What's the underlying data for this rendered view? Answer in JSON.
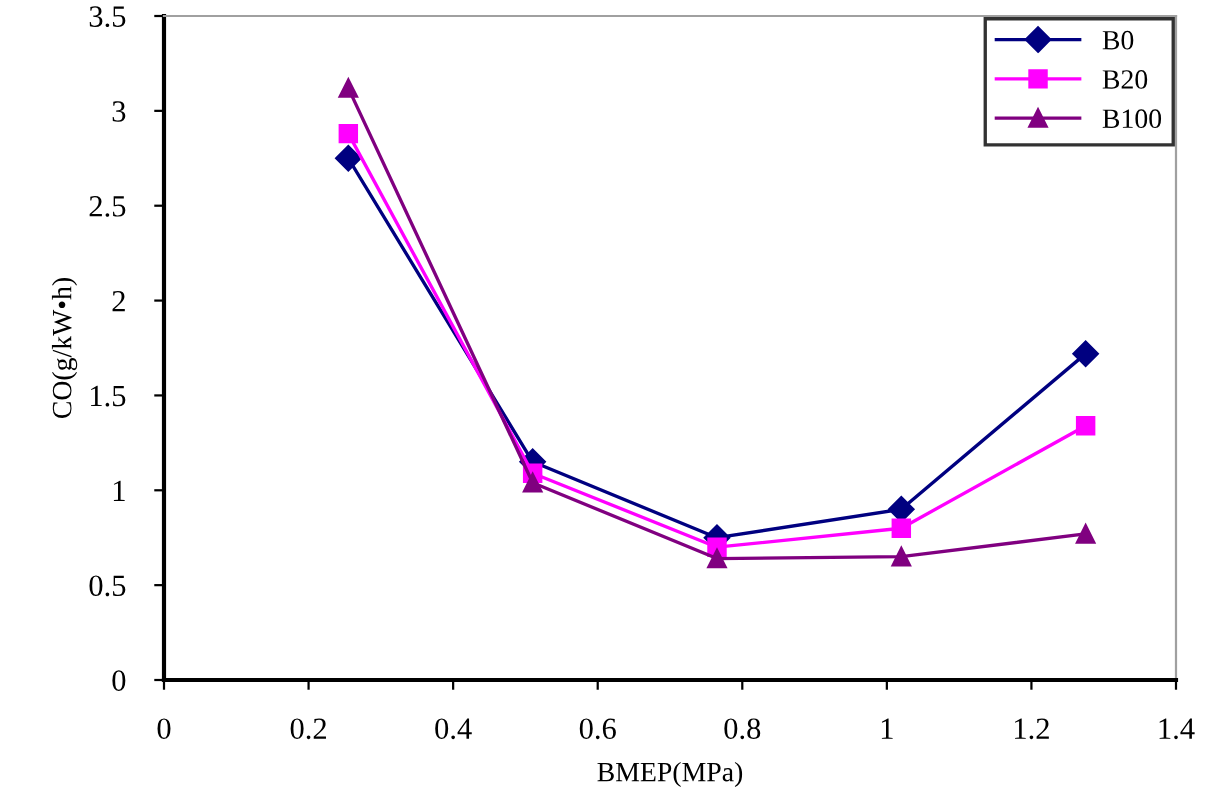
{
  "chart_data": {
    "type": "line",
    "xlabel": "BMEP(MPa)",
    "ylabel": "CO(g/kW•h)",
    "x": [
      0.255,
      0.51,
      0.765,
      1.02,
      1.275
    ],
    "series": [
      {
        "name": "B0",
        "color": "#000080",
        "marker": "diamond",
        "values": [
          2.75,
          1.15,
          0.75,
          0.9,
          1.72
        ]
      },
      {
        "name": "B20",
        "color": "#ff00ff",
        "marker": "square",
        "values": [
          2.88,
          1.09,
          0.7,
          0.8,
          1.34
        ]
      },
      {
        "name": "B100",
        "color": "#800080",
        "marker": "triangle",
        "values": [
          3.12,
          1.04,
          0.64,
          0.65,
          0.77
        ]
      }
    ],
    "xlim": [
      0,
      1.4
    ],
    "xticks": [
      0,
      0.2,
      0.4,
      0.6,
      0.8,
      1,
      1.2,
      1.4
    ],
    "ylim": [
      0,
      3.5
    ],
    "yticks": [
      0,
      0.5,
      1,
      1.5,
      2,
      2.5,
      3,
      3.5
    ],
    "grid": false,
    "legend": "top right",
    "line_style": "solid"
  }
}
